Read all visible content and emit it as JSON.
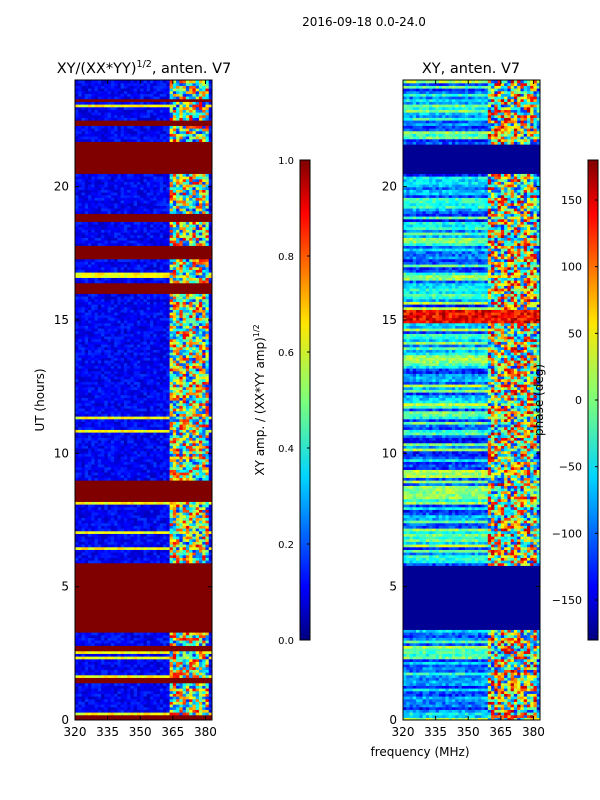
{
  "chart_data": {
    "type": "heatmap",
    "suptitle": "2016-09-18 0.0-24.0",
    "shared_xlabel": "frequency (MHz)",
    "colormap": "jet",
    "panels": [
      {
        "title": "XY/(XX*YY)",
        "title_superscript": "1/2",
        "title_suffix": ", anten. V7",
        "ylabel": "UT (hours)",
        "xlim": [
          320,
          383
        ],
        "ylim": [
          0,
          24
        ],
        "xticks": [
          320,
          335,
          350,
          365,
          380
        ],
        "yticks": [
          0,
          5,
          10,
          15,
          20
        ],
        "colorbar": {
          "label": "XY amp. / (XX*YY amp)",
          "label_superscript": "1/2",
          "range": [
            0.0,
            1.0
          ],
          "ticks": [
            "0.0",
            "0.2",
            "0.4",
            "0.6",
            "0.8",
            "1.0"
          ]
        },
        "background_value": 0.12,
        "saturated_bands_hours": [
          [
            0,
            0.2
          ],
          [
            1.45,
            1.6
          ],
          [
            2.6,
            2.8
          ],
          [
            3.3,
            5.9
          ],
          [
            8.2,
            9.0
          ],
          [
            16.0,
            16.4
          ],
          [
            17.3,
            17.8
          ],
          [
            18.7,
            19.0
          ],
          [
            20.5,
            21.7
          ],
          [
            22.3,
            22.5
          ],
          [
            23.2,
            23.3
          ]
        ],
        "active_band_mhz": [
          363,
          381
        ]
      },
      {
        "title": "XY, anten. V7",
        "ylabel": "",
        "xlim": [
          320,
          383
        ],
        "ylim": [
          0,
          24
        ],
        "xticks": [
          320,
          335,
          350,
          365,
          380
        ],
        "yticks": [
          0,
          5,
          10,
          15,
          20
        ],
        "colorbar": {
          "label": "phase (deg)",
          "range": [
            -180,
            180
          ],
          "ticks": [
            "−150",
            "−100",
            "−50",
            "0",
            "50",
            "100",
            "150"
          ]
        },
        "background_value": -130,
        "blank_bands_hours": [
          [
            3.4,
            5.8
          ],
          [
            20.5,
            21.6
          ]
        ],
        "high_phase_band_hours": [
          14.9,
          15.4
        ],
        "active_band_mhz": [
          359,
          381
        ]
      }
    ]
  }
}
